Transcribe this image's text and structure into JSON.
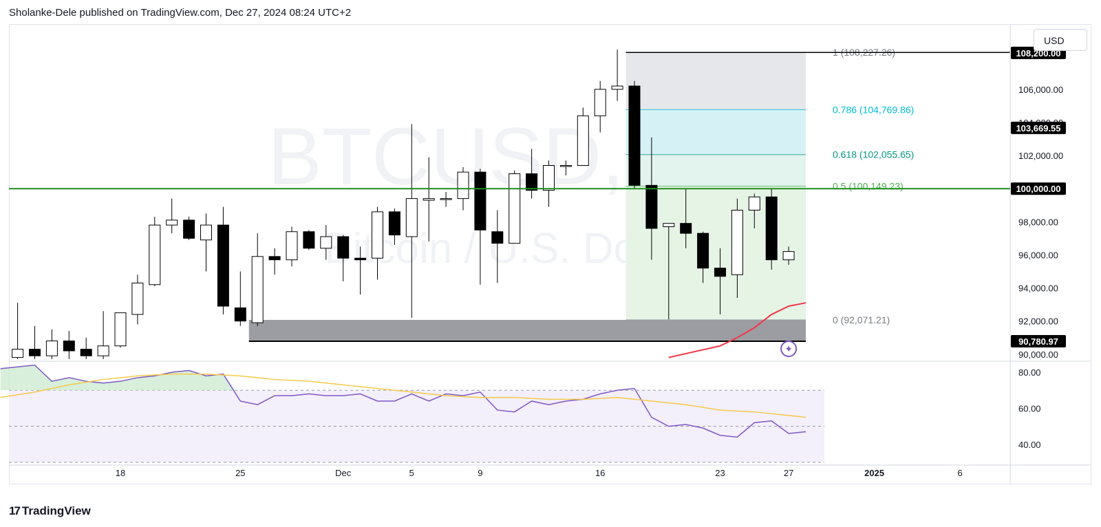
{
  "header": {
    "publish_line": "Sholanke-Dele published on TradingView.com, Dec 27, 2024 08:24 UTC+2"
  },
  "currency_button": "USD",
  "watermark": {
    "symbol": "BTCUSD, 1D",
    "description": "Bitcoin / U.S. Dollar"
  },
  "footer": {
    "logo_icon": "tradingview-logo-icon",
    "brand": "TradingView"
  },
  "chart_data": [
    {
      "type": "candlestick",
      "title": "",
      "ylim": [
        89700,
        109900
      ],
      "price_axis_ticks": [
        "106,000.00",
        "104,000.00",
        "102,000.00",
        "98,000.00",
        "96,000.00",
        "94,000.00",
        "92,000.00",
        "90,000.00"
      ],
      "price_axis_tick_values": [
        106000,
        104000,
        102000,
        98000,
        96000,
        94000,
        92000,
        90000
      ],
      "price_labels": [
        {
          "text": "108,200.00",
          "value": 108200,
          "color": "#000000"
        },
        {
          "text": "103,669.55",
          "value": 103669.55,
          "color": "#000000"
        },
        {
          "text": "100,000.00",
          "value": 100000,
          "color": "#000000"
        },
        {
          "text": "90,780.97",
          "value": 90780.97,
          "color": "#000000"
        }
      ],
      "time_axis_labels": [
        {
          "text": "18",
          "day": 18
        },
        {
          "text": "25",
          "day": 25
        },
        {
          "text": "Dec",
          "day": 31
        },
        {
          "text": "5",
          "day": 35
        },
        {
          "text": "9",
          "day": 39
        },
        {
          "text": "16",
          "day": 46
        },
        {
          "text": "23",
          "day": 53
        },
        {
          "text": "27",
          "day": 57
        },
        {
          "text": "2025",
          "day": 62
        },
        {
          "text": "6",
          "day": 67
        }
      ],
      "candles": [
        {
          "day": 12,
          "open": 89800,
          "high": 93100,
          "low": 89700,
          "close": 90300
        },
        {
          "day": 13,
          "open": 90300,
          "high": 91700,
          "low": 89700,
          "close": 89900
        },
        {
          "day": 14,
          "open": 89900,
          "high": 91500,
          "low": 89700,
          "close": 90800
        },
        {
          "day": 15,
          "open": 90800,
          "high": 91400,
          "low": 89700,
          "close": 90200
        },
        {
          "day": 16,
          "open": 90300,
          "high": 91000,
          "low": 89700,
          "close": 89900
        },
        {
          "day": 17,
          "open": 89900,
          "high": 92600,
          "low": 89700,
          "close": 90500
        },
        {
          "day": 18,
          "open": 90500,
          "high": 92500,
          "low": 90400,
          "close": 92500
        },
        {
          "day": 19,
          "open": 92400,
          "high": 94800,
          "low": 91800,
          "close": 94300
        },
        {
          "day": 20,
          "open": 94200,
          "high": 98300,
          "low": 94100,
          "close": 97800
        },
        {
          "day": 21,
          "open": 97800,
          "high": 99400,
          "low": 97300,
          "close": 98100
        },
        {
          "day": 22,
          "open": 98100,
          "high": 98300,
          "low": 96900,
          "close": 97000
        },
        {
          "day": 23,
          "open": 96900,
          "high": 98500,
          "low": 95000,
          "close": 97800
        },
        {
          "day": 24,
          "open": 97800,
          "high": 98900,
          "low": 92400,
          "close": 92900
        },
        {
          "day": 25,
          "open": 92800,
          "high": 95000,
          "low": 91700,
          "close": 92000
        },
        {
          "day": 26,
          "open": 91900,
          "high": 97300,
          "low": 91700,
          "close": 95900
        },
        {
          "day": 27,
          "open": 95900,
          "high": 96400,
          "low": 94800,
          "close": 95700
        },
        {
          "day": 28,
          "open": 95700,
          "high": 97700,
          "low": 95300,
          "close": 97400
        },
        {
          "day": 29,
          "open": 97400,
          "high": 97500,
          "low": 96300,
          "close": 96400
        },
        {
          "day": 30,
          "open": 96400,
          "high": 97800,
          "low": 95700,
          "close": 97100
        },
        {
          "day": 31,
          "open": 97100,
          "high": 97200,
          "low": 94400,
          "close": 95800
        },
        {
          "day": 32,
          "open": 95800,
          "high": 96500,
          "low": 93600,
          "close": 95700
        },
        {
          "day": 33,
          "open": 95800,
          "high": 98900,
          "low": 94500,
          "close": 98600
        },
        {
          "day": 34,
          "open": 98600,
          "high": 98800,
          "low": 96600,
          "close": 97200
        },
        {
          "day": 35,
          "open": 97100,
          "high": 103900,
          "low": 92200,
          "close": 99400
        },
        {
          "day": 36,
          "open": 99300,
          "high": 101900,
          "low": 96800,
          "close": 99400
        },
        {
          "day": 37,
          "open": 99400,
          "high": 99800,
          "low": 98900,
          "close": 99400
        },
        {
          "day": 38,
          "open": 99400,
          "high": 101300,
          "low": 98700,
          "close": 101000
        },
        {
          "day": 39,
          "open": 101000,
          "high": 101200,
          "low": 94200,
          "close": 97500
        },
        {
          "day": 40,
          "open": 97400,
          "high": 98700,
          "low": 94300,
          "close": 96700
        },
        {
          "day": 41,
          "open": 96700,
          "high": 101100,
          "low": 96700,
          "close": 100900
        },
        {
          "day": 42,
          "open": 100900,
          "high": 102400,
          "low": 99400,
          "close": 99900
        },
        {
          "day": 43,
          "open": 99900,
          "high": 101700,
          "low": 98900,
          "close": 101400
        },
        {
          "day": 44,
          "open": 101400,
          "high": 101700,
          "low": 100800,
          "close": 101400
        },
        {
          "day": 45,
          "open": 101400,
          "high": 104900,
          "low": 101400,
          "close": 104400
        },
        {
          "day": 46,
          "open": 104400,
          "high": 106500,
          "low": 103400,
          "close": 106000
        },
        {
          "day": 47,
          "open": 106000,
          "high": 108400,
          "low": 105300,
          "close": 106200
        },
        {
          "day": 48,
          "open": 106200,
          "high": 106500,
          "low": 100000,
          "close": 100200
        },
        {
          "day": 49,
          "open": 100200,
          "high": 103100,
          "low": 95700,
          "close": 97600
        },
        {
          "day": 50,
          "open": 97700,
          "high": 97800,
          "low": 92100,
          "close": 97900
        },
        {
          "day": 51,
          "open": 97900,
          "high": 100000,
          "low": 96400,
          "close": 97300
        },
        {
          "day": 52,
          "open": 97300,
          "high": 97400,
          "low": 94300,
          "close": 95200
        },
        {
          "day": 53,
          "open": 95200,
          "high": 96400,
          "low": 92400,
          "close": 94700
        },
        {
          "day": 54,
          "open": 94800,
          "high": 99400,
          "low": 93400,
          "close": 98700
        },
        {
          "day": 55,
          "open": 98700,
          "high": 99700,
          "low": 97600,
          "close": 99500
        },
        {
          "day": 56,
          "open": 99500,
          "high": 100000,
          "low": 95100,
          "close": 95700
        },
        {
          "day": 57,
          "open": 95700,
          "high": 96500,
          "low": 95400,
          "close": 96200
        }
      ],
      "horizontal_line": {
        "value": 100000,
        "color": "#1e8c1e"
      },
      "fibonacci": {
        "start_day": 47.5,
        "end_day": 58,
        "levels": [
          {
            "label": "1 (108,227.26)",
            "ratio": 1,
            "value": 108227.26,
            "color": "#787b86"
          },
          {
            "label": "0.786 (104,769.86)",
            "ratio": 0.786,
            "value": 104769.86,
            "color": "#00bcd4"
          },
          {
            "label": "0.618 (102,055.65)",
            "ratio": 0.618,
            "value": 102055.65,
            "color": "#089981"
          },
          {
            "label": "0.5 (100,149.23)",
            "ratio": 0.5,
            "value": 100149.23,
            "color": "#4caf50"
          },
          {
            "label": "0 (92,071.21)",
            "ratio": 0,
            "value": 92071.21,
            "color": "#787b86"
          }
        ]
      },
      "support_zone": {
        "start_day": 25.5,
        "end_day": 58,
        "top": 92071.21,
        "bottom": 90780.97
      },
      "moving_average": {
        "color": "#f23645",
        "points": [
          [
            50,
            89800
          ],
          [
            53,
            90500
          ],
          [
            54,
            91000
          ],
          [
            55,
            91600
          ],
          [
            56,
            92400
          ],
          [
            57,
            92900
          ],
          [
            58,
            93100
          ]
        ]
      }
    },
    {
      "type": "line",
      "title": "",
      "ylim": [
        30,
        85
      ],
      "y_ticks": [
        "80.00",
        "60.00",
        "40.00"
      ],
      "y_tick_values": [
        80,
        60,
        40
      ],
      "band": {
        "upper": 70,
        "middle": 50,
        "lower": 30
      },
      "series": [
        {
          "color": "#7e57c2",
          "values": [
            [
              11,
              82
            ],
            [
              12,
              83
            ],
            [
              13,
              84
            ],
            [
              14,
              75
            ],
            [
              15,
              77
            ],
            [
              16,
              75
            ],
            [
              17,
              74
            ],
            [
              18,
              75
            ],
            [
              19,
              77
            ],
            [
              20,
              78
            ],
            [
              21,
              80
            ],
            [
              22,
              81
            ],
            [
              23,
              78
            ],
            [
              24,
              79
            ],
            [
              25,
              64
            ],
            [
              26,
              62
            ],
            [
              27,
              67
            ],
            [
              28,
              67
            ],
            [
              29,
              68
            ],
            [
              30,
              67
            ],
            [
              31,
              67
            ],
            [
              32,
              68
            ],
            [
              33,
              64
            ],
            [
              34,
              64
            ],
            [
              35,
              68
            ],
            [
              36,
              64
            ],
            [
              37,
              68
            ],
            [
              38,
              67
            ],
            [
              39,
              69
            ],
            [
              40,
              59
            ],
            [
              41,
              58
            ],
            [
              42,
              64
            ],
            [
              43,
              62
            ],
            [
              44,
              64
            ],
            [
              45,
              65
            ],
            [
              46,
              68
            ],
            [
              47,
              70
            ],
            [
              48,
              71
            ],
            [
              49,
              55
            ],
            [
              50,
              50
            ],
            [
              51,
              51
            ],
            [
              52,
              49
            ],
            [
              53,
              45
            ],
            [
              54,
              44
            ],
            [
              55,
              52
            ],
            [
              56,
              53
            ],
            [
              57,
              46
            ],
            [
              58,
              47
            ]
          ]
        },
        {
          "color": "#f7c948",
          "values": [
            [
              11,
              66
            ],
            [
              13,
              69
            ],
            [
              15,
              73
            ],
            [
              17,
              76
            ],
            [
              19,
              78
            ],
            [
              21,
              79
            ],
            [
              23,
              79
            ],
            [
              25,
              78
            ],
            [
              27,
              76
            ],
            [
              29,
              75
            ],
            [
              31,
              73
            ],
            [
              33,
              71
            ],
            [
              35,
              69
            ],
            [
              37,
              67
            ],
            [
              39,
              66
            ],
            [
              41,
              66
            ],
            [
              43,
              65
            ],
            [
              45,
              65
            ],
            [
              47,
              66
            ],
            [
              49,
              64
            ],
            [
              51,
              62
            ],
            [
              53,
              59
            ],
            [
              55,
              58
            ],
            [
              57,
              56
            ],
            [
              58,
              55
            ]
          ]
        }
      ]
    }
  ]
}
